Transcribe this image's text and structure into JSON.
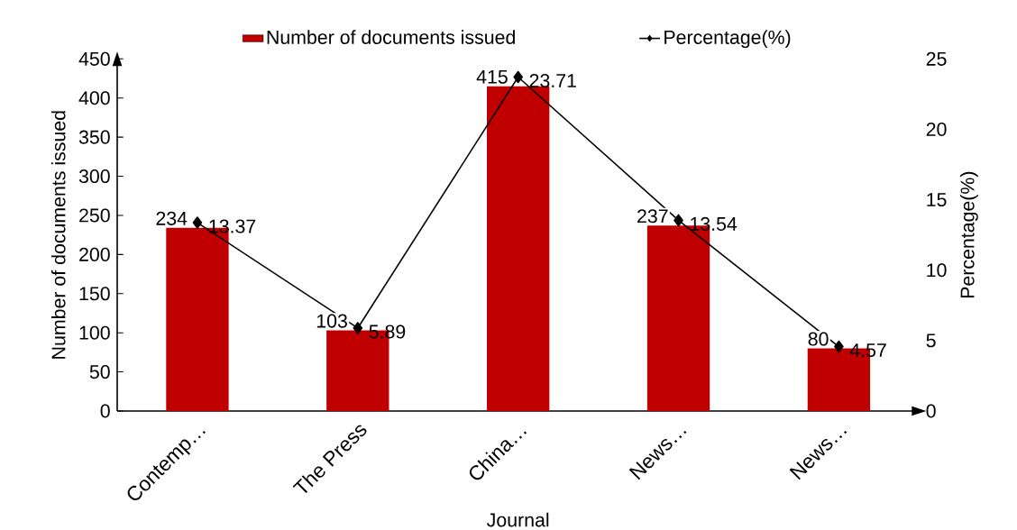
{
  "chart_data": {
    "type": "bar",
    "xlabel": "Journal",
    "ylabel": "Number of documents issued",
    "y2label": "Percentage(%)",
    "categories": [
      "Contemp…",
      "The Press",
      "China…",
      "News…",
      "News…"
    ],
    "series": [
      {
        "name": "Number of documents issued",
        "color": "#c00000",
        "values": [
          234,
          103,
          415,
          237,
          80
        ]
      },
      {
        "name": "Percentage(%)",
        "type": "line",
        "axis": "y2",
        "color": "#000000",
        "marker": "diamond",
        "values": [
          13.37,
          5.89,
          23.71,
          13.54,
          4.57
        ]
      }
    ],
    "ylim": [
      0,
      450
    ],
    "yticks": [
      0,
      50,
      100,
      150,
      200,
      250,
      300,
      350,
      400,
      450
    ],
    "y2lim": [
      0,
      25
    ],
    "y2ticks": [
      0,
      5,
      10,
      15,
      20,
      25
    ],
    "data_labels": true,
    "legend": "top",
    "grid": false
  }
}
